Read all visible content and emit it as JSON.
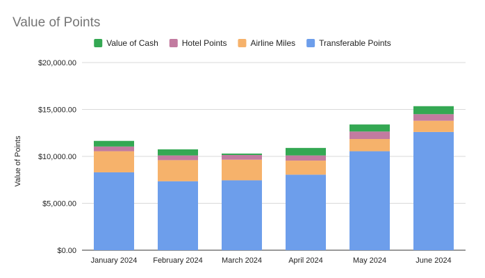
{
  "chart_data": {
    "type": "bar",
    "stacked": true,
    "title": "Value of Points",
    "xlabel": "",
    "ylabel": "Value of Points",
    "ylim": [
      0,
      20000
    ],
    "yticks": [
      0,
      5000,
      10000,
      15000,
      20000
    ],
    "ytick_labels": [
      "$0.00",
      "$5,000.00",
      "$10,000.00",
      "$15,000.00",
      "$20,000.00"
    ],
    "grid": true,
    "legend_position": "top",
    "categories": [
      "January 2024",
      "February 2024",
      "March 2024",
      "April 2024",
      "May 2024",
      "June 2024"
    ],
    "series": [
      {
        "name": "Transferable Points",
        "color": "#6d9eeb",
        "values": [
          8300,
          7350,
          7450,
          8050,
          10550,
          12600
        ]
      },
      {
        "name": "Airline Miles",
        "color": "#f6b26b",
        "values": [
          2250,
          2250,
          2200,
          1500,
          1300,
          1200
        ]
      },
      {
        "name": "Hotel Points",
        "color": "#c27ba0",
        "values": [
          500,
          500,
          500,
          550,
          800,
          700
        ]
      },
      {
        "name": "Value of Cash",
        "color": "#34a853",
        "values": [
          600,
          650,
          150,
          800,
          750,
          850
        ]
      }
    ],
    "legend_order": [
      "Value of Cash",
      "Hotel Points",
      "Airline Miles",
      "Transferable Points"
    ]
  }
}
